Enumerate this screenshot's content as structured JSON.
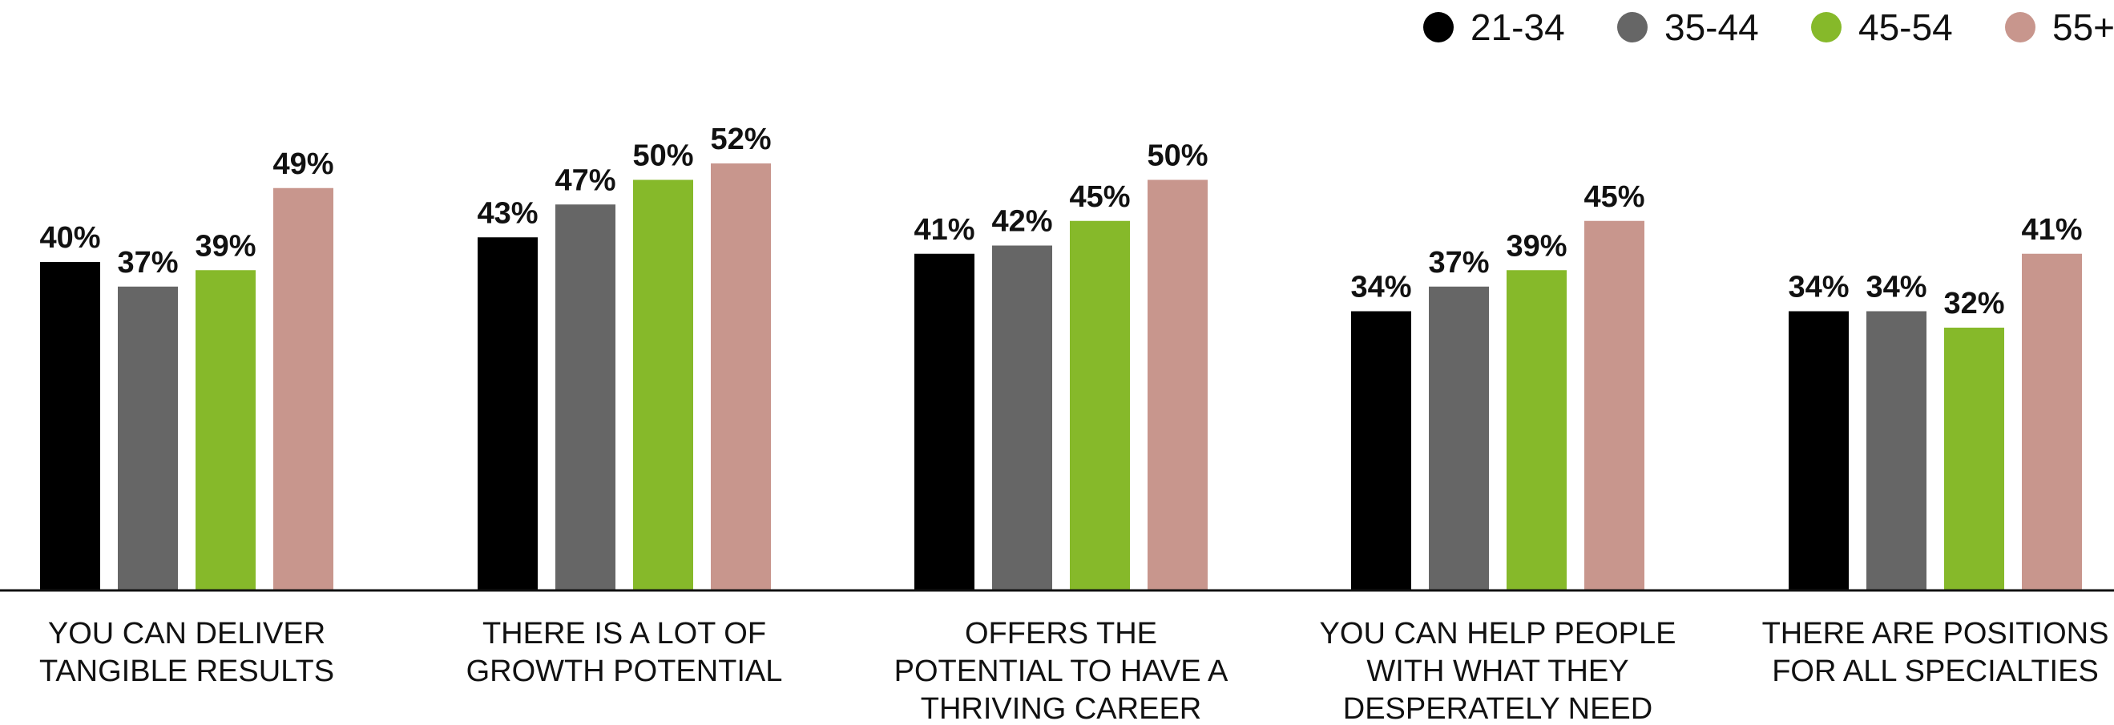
{
  "chart_data": {
    "type": "bar",
    "categories": [
      [
        "YOU CAN DELIVER",
        "TANGIBLE RESULTS"
      ],
      [
        "THERE IS A LOT OF",
        "GROWTH POTENTIAL"
      ],
      [
        "OFFERS THE",
        "POTENTIAL TO HAVE A",
        "THRIVING CAREER"
      ],
      [
        "YOU CAN HELP PEOPLE",
        "WITH WHAT THEY",
        "DESPERATELY NEED"
      ],
      [
        "THERE ARE POSITIONS",
        "FOR ALL SPECIALTIES"
      ]
    ],
    "series": [
      {
        "name": "21-34",
        "color": "#000000",
        "values": [
          40,
          43,
          41,
          34,
          34
        ],
        "labels": [
          "40%",
          "43%",
          "41%",
          "34%",
          "34%"
        ]
      },
      {
        "name": "35-44",
        "color": "#666666",
        "values": [
          37,
          47,
          42,
          37,
          34
        ],
        "labels": [
          "37%",
          "47%",
          "42%",
          "37%",
          "34%"
        ]
      },
      {
        "name": "45-54",
        "color": "#86b92a",
        "values": [
          39,
          50,
          45,
          39,
          32
        ],
        "labels": [
          "39%",
          "50%",
          "45%",
          "39%",
          "32%"
        ]
      },
      {
        "name": "55+",
        "color": "#c8968d",
        "values": [
          49,
          52,
          50,
          45,
          41
        ],
        "labels": [
          "49%",
          "52%",
          "50%",
          "45%",
          "41%"
        ]
      }
    ],
    "title": "",
    "xlabel": "",
    "ylabel": "",
    "ylim": [
      0,
      60
    ],
    "grid": false,
    "legend": "top-right"
  }
}
